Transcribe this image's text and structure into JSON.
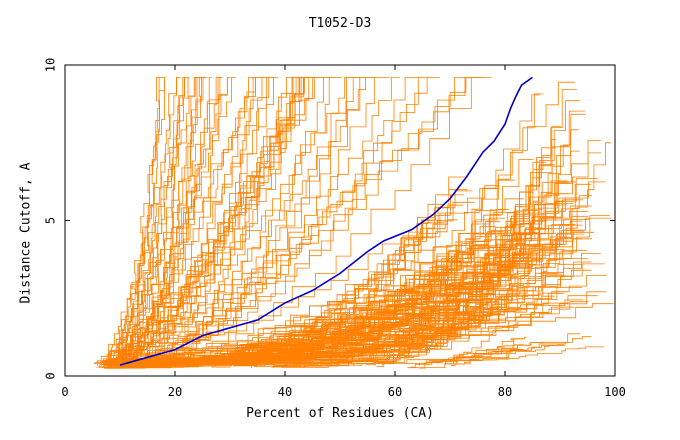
{
  "chart_data": {
    "type": "line",
    "title": "T1052-D3",
    "xlabel": "Percent of Residues (CA)",
    "ylabel": "Distance Cutoff, A",
    "xlim": [
      0,
      100
    ],
    "ylim": [
      0,
      10
    ],
    "xticks": [
      "0",
      "20",
      "40",
      "60",
      "80",
      "100"
    ],
    "yticks": [
      "0",
      "5",
      "10"
    ],
    "grid": false,
    "series": [
      {
        "color": "#0000cc",
        "highlight": true,
        "x": [
          10,
          15,
          20,
          25,
          30,
          35,
          40,
          45,
          50,
          55,
          58,
          63,
          67,
          70,
          73,
          76,
          78,
          80,
          81,
          82,
          83,
          85
        ],
        "y": [
          0.35,
          0.6,
          0.85,
          1.3,
          1.55,
          1.8,
          2.35,
          2.75,
          3.3,
          4.0,
          4.35,
          4.7,
          5.2,
          5.7,
          6.4,
          7.2,
          7.55,
          8.1,
          8.6,
          9.0,
          9.35,
          9.6
        ]
      }
    ],
    "background_models": {
      "count": 200,
      "color": "#ff8000",
      "groups": [
        {
          "share": 0.2,
          "x_start": [
            5,
            11
          ],
          "x_end": [
            17,
            45
          ],
          "y_end": 9.6,
          "curvature": [
            1.2,
            2.3
          ]
        },
        {
          "share": 0.1,
          "x_start": [
            7,
            13
          ],
          "x_end": [
            45,
            78
          ],
          "y_end": 9.6,
          "curvature": [
            1.3,
            2.4
          ]
        },
        {
          "share": 0.48,
          "x_start": [
            6,
            18
          ],
          "x_end": [
            68,
            100
          ],
          "y_end": [
            2.0,
            6.5
          ],
          "curvature": [
            1.7,
            3.4
          ]
        },
        {
          "share": 0.17,
          "x_start": [
            22,
            58
          ],
          "x_end": [
            84,
            100
          ],
          "y_end": [
            4.0,
            9.6
          ],
          "curvature": [
            1.6,
            3.2
          ]
        },
        {
          "share": 0.05,
          "x_start": [
            62,
            72
          ],
          "x_end": [
            82,
            100
          ],
          "y_end": [
            0.8,
            1.3
          ],
          "curvature": [
            1.0,
            1.4
          ]
        }
      ]
    }
  }
}
